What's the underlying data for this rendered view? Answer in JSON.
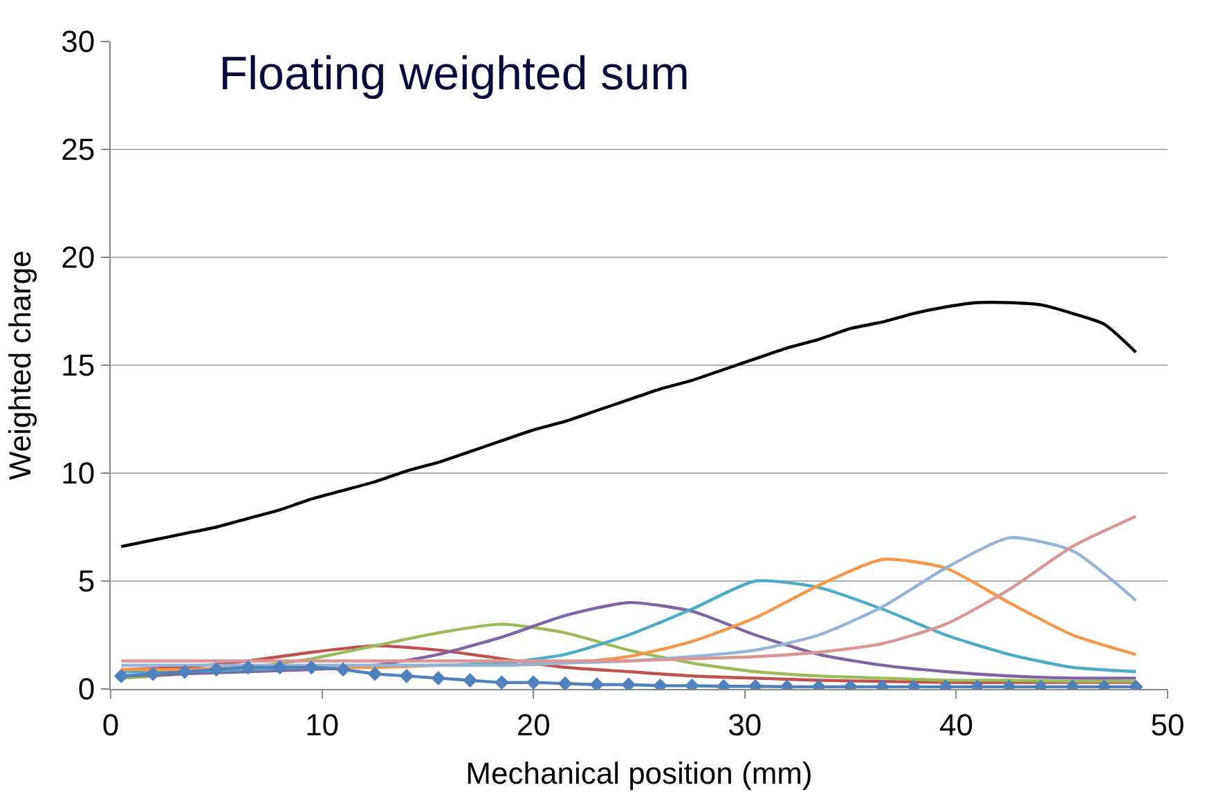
{
  "chart_data": {
    "type": "line",
    "title": "Floating weighted sum",
    "xlabel": "Mechanical position (mm)",
    "ylabel": "Weighted charge",
    "xlim": [
      0,
      50
    ],
    "xticks": [
      0,
      10,
      20,
      30,
      40,
      50
    ],
    "ylim": [
      0,
      30
    ],
    "yticks": [
      0,
      5,
      10,
      15,
      20,
      25,
      30
    ],
    "grid": "y",
    "marker": "none",
    "line_style": "solid",
    "x": [
      0.5,
      3.5,
      6.5,
      9.5,
      12.5,
      15.5,
      18.5,
      21.5,
      24.5,
      27.5,
      30.5,
      33.5,
      36.5,
      39.5,
      42.5,
      45.5,
      48.5
    ],
    "series": [
      {
        "color": "#000000",
        "x": [
          0.5,
          2,
          3.5,
          5,
          6.5,
          8,
          9.5,
          11,
          12.5,
          14,
          15.5,
          17,
          18.5,
          20,
          21.5,
          23,
          24.5,
          26,
          27.5,
          29,
          30.5,
          32,
          33.5,
          35,
          36.5,
          38,
          39.5,
          41,
          42.5,
          44,
          45.5,
          47,
          48.5
        ],
        "values": [
          6.6,
          6.9,
          7.2,
          7.5,
          7.9,
          8.3,
          8.8,
          9.2,
          9.6,
          10.1,
          10.5,
          11.0,
          11.5,
          12.0,
          12.4,
          12.9,
          13.4,
          13.9,
          14.3,
          14.8,
          15.3,
          15.8,
          16.2,
          16.7,
          17.0,
          17.4,
          17.7,
          17.9,
          17.9,
          17.8,
          17.4,
          16.9,
          15.6
        ]
      },
      {
        "color": "#c0504d",
        "values": [
          0.9,
          1.0,
          1.3,
          1.7,
          2.0,
          1.8,
          1.4,
          1.0,
          0.8,
          0.6,
          0.5,
          0.4,
          0.35,
          0.3,
          0.3,
          0.3,
          0.3
        ]
      },
      {
        "color": "#9bbb59",
        "values": [
          0.5,
          0.7,
          1.0,
          1.4,
          2.0,
          2.6,
          3.0,
          2.6,
          1.8,
          1.2,
          0.8,
          0.6,
          0.5,
          0.4,
          0.4,
          0.35,
          0.35
        ]
      },
      {
        "color": "#8064a2",
        "values": [
          0.6,
          0.7,
          0.8,
          0.9,
          1.1,
          1.6,
          2.4,
          3.4,
          4.0,
          3.6,
          2.5,
          1.6,
          1.1,
          0.8,
          0.6,
          0.5,
          0.5
        ]
      },
      {
        "color": "#4bacc6",
        "values": [
          0.8,
          0.8,
          0.9,
          1.0,
          1.0,
          1.1,
          1.2,
          1.6,
          2.5,
          3.7,
          5.0,
          4.7,
          3.7,
          2.5,
          1.6,
          1.0,
          0.8
        ]
      },
      {
        "color": "#f79646",
        "values": [
          0.9,
          0.9,
          1.0,
          1.0,
          1.0,
          1.1,
          1.1,
          1.2,
          1.5,
          2.2,
          3.3,
          4.8,
          6.0,
          5.6,
          4.0,
          2.5,
          1.6
        ]
      },
      {
        "color": "#95b3d7",
        "values": [
          1.1,
          1.1,
          1.1,
          1.1,
          1.1,
          1.1,
          1.1,
          1.2,
          1.3,
          1.5,
          1.8,
          2.5,
          3.8,
          5.6,
          7.0,
          6.4,
          4.1
        ]
      },
      {
        "color": "#d99694",
        "values": [
          1.3,
          1.3,
          1.3,
          1.3,
          1.3,
          1.3,
          1.3,
          1.3,
          1.3,
          1.4,
          1.5,
          1.7,
          2.1,
          3.0,
          4.6,
          6.6,
          8.0
        ]
      },
      {
        "color": "#4f81bd",
        "marker": "diamond",
        "x": [
          0.5,
          2,
          3.5,
          5,
          6.5,
          8,
          9.5,
          11,
          12.5,
          14,
          15.5,
          17,
          18.5,
          20,
          21.5,
          23,
          24.5,
          26,
          27.5,
          29,
          30.5,
          32,
          33.5,
          35,
          36.5,
          38,
          39.5,
          41,
          42.5,
          44,
          45.5,
          47,
          48.5
        ],
        "values": [
          0.6,
          0.7,
          0.8,
          0.9,
          1.0,
          1.0,
          1.0,
          0.9,
          0.7,
          0.6,
          0.5,
          0.4,
          0.3,
          0.3,
          0.25,
          0.2,
          0.2,
          0.15,
          0.15,
          0.12,
          0.12,
          0.1,
          0.1,
          0.1,
          0.1,
          0.1,
          0.1,
          0.1,
          0.1,
          0.1,
          0.1,
          0.1,
          0.1
        ]
      }
    ]
  }
}
